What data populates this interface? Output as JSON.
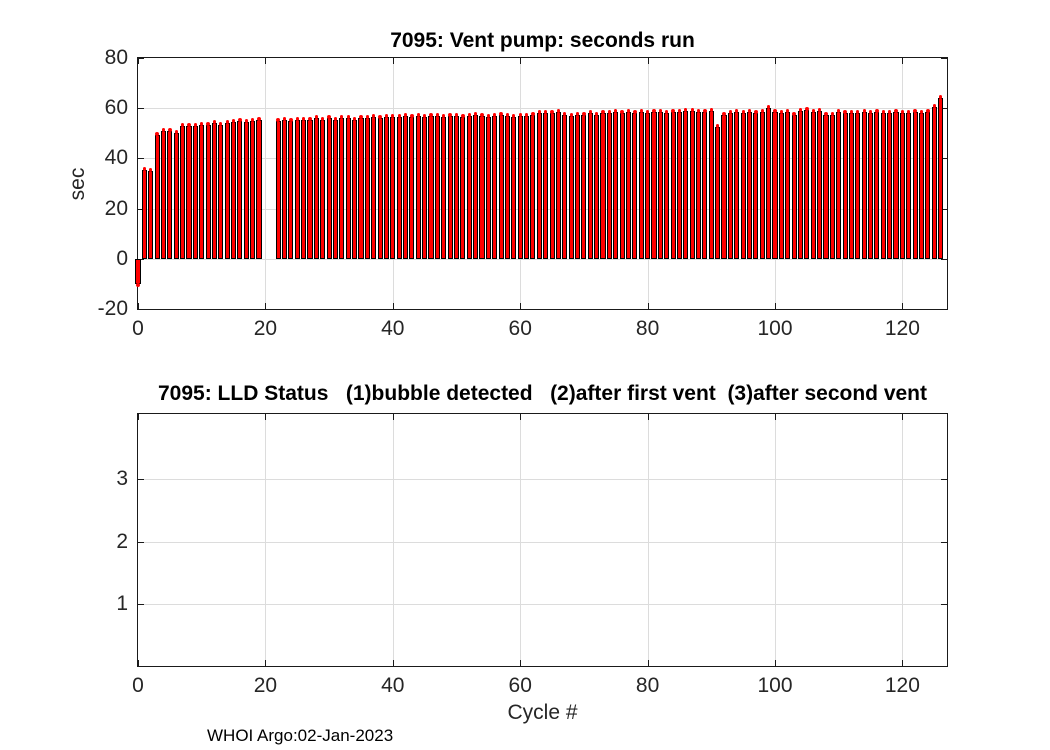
{
  "figure": {
    "footer": "WHOI Argo:02-Jan-2023",
    "background_color": "#ffffff",
    "grid_color": "#dcdcdc",
    "axis_color": "#1a1a1a",
    "text_color": "#262626"
  },
  "chart_data": [
    {
      "type": "bar",
      "title": "7095: Vent pump: seconds run",
      "xlabel": "",
      "ylabel": "sec",
      "xlim": [
        0,
        127
      ],
      "ylim": [
        -20,
        80
      ],
      "xticks": [
        0,
        20,
        40,
        60,
        80,
        100,
        120
      ],
      "yticks": [
        -20,
        0,
        20,
        40,
        60,
        80
      ],
      "grid": true,
      "legend": null,
      "bar_color": "#ff0000",
      "bar_edge_color": "#000000",
      "marker_color": "#ff0000",
      "x_start_cycle": 0,
      "values": [
        -10,
        35.5,
        35,
        49.5,
        51,
        51,
        50,
        53,
        53,
        53,
        53.5,
        53.5,
        54,
        53.5,
        54,
        54.5,
        55,
        54.5,
        55,
        55.5,
        null,
        null,
        55,
        55.5,
        55,
        55.5,
        55.5,
        55.5,
        56,
        55.5,
        56,
        55.5,
        56,
        56,
        55.5,
        56,
        56,
        56.5,
        56,
        56.5,
        56.5,
        56.5,
        57,
        56.5,
        57,
        56.5,
        57,
        57,
        56.5,
        57,
        57,
        56.5,
        57,
        57.5,
        57,
        56.5,
        57,
        57.5,
        57,
        56.5,
        57,
        57,
        57.5,
        58,
        58,
        58,
        58.5,
        57.5,
        57,
        57.5,
        57.5,
        58,
        57.5,
        58,
        58,
        58.5,
        58,
        58.5,
        58,
        58.5,
        58,
        58.5,
        58.5,
        58,
        58.5,
        58.5,
        59,
        59,
        58.5,
        58.5,
        59,
        52.5,
        57.5,
        58,
        58.5,
        58,
        58.5,
        58,
        58.5,
        60,
        58.5,
        58,
        58.5,
        57.5,
        59,
        59.5,
        58.5,
        59,
        57.5,
        57.5,
        58.5,
        58,
        58,
        58,
        58.5,
        58,
        58.5,
        58,
        58,
        58.5,
        58,
        58,
        58.5,
        58,
        58.5,
        60.5,
        64
      ]
    },
    {
      "type": "scatter",
      "title": "7095: LLD Status   (1)bubble detected   (2)after first vent  (3)after second vent",
      "xlabel": "Cycle #",
      "ylabel": "",
      "xlim": [
        0,
        127
      ],
      "ylim": [
        0,
        4.05
      ],
      "xticks": [
        0,
        20,
        40,
        60,
        80,
        100,
        120
      ],
      "yticks": [
        1,
        2,
        3
      ],
      "grid": true,
      "legend": null,
      "values": []
    }
  ]
}
